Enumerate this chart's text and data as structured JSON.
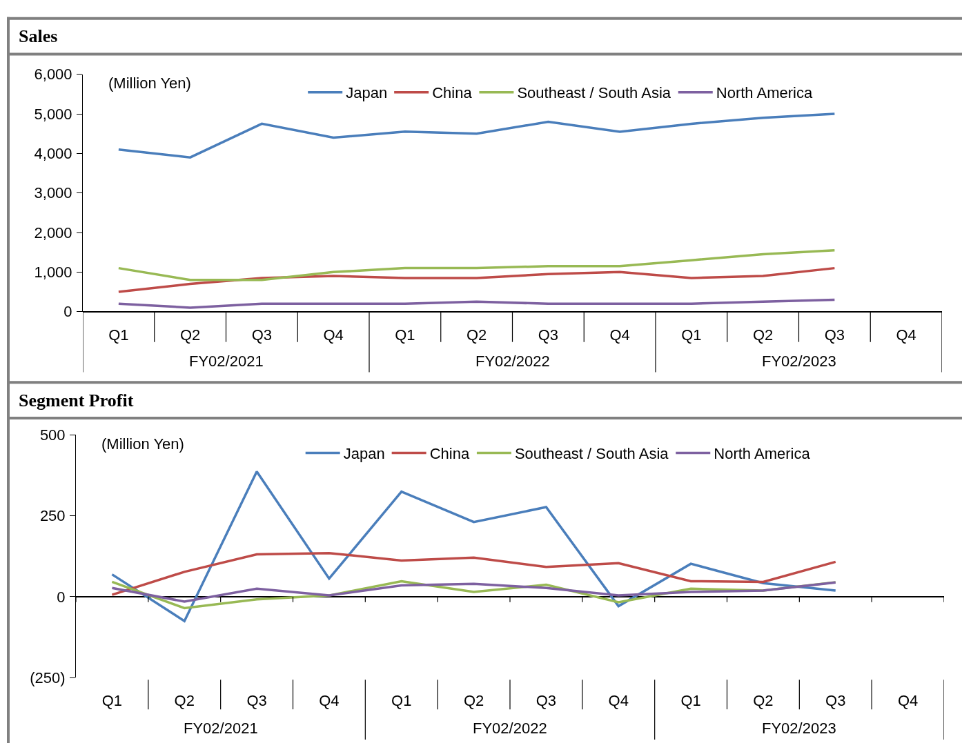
{
  "chart_data": [
    {
      "type": "line",
      "title": "Sales",
      "categories": [
        "Q1",
        "Q2",
        "Q3",
        "Q4",
        "Q1",
        "Q2",
        "Q3",
        "Q4",
        "Q1",
        "Q2",
        "Q3",
        "Q4"
      ],
      "annotations": [
        "(Million Yen)",
        "FY02/2021",
        "FY02/2022",
        "FY02/2023"
      ],
      "series": [
        {
          "name": "Japan",
          "color": "#4a7ebb",
          "values": [
            4100,
            3900,
            4750,
            4400,
            4550,
            4500,
            4800,
            4550,
            4750,
            4900,
            5000,
            null
          ]
        },
        {
          "name": "China",
          "color": "#be4b48",
          "values": [
            500,
            700,
            850,
            900,
            850,
            850,
            950,
            1000,
            850,
            900,
            1100,
            null
          ]
        },
        {
          "name": "Southeast / South Asia",
          "color": "#98b954",
          "values": [
            1100,
            800,
            800,
            1000,
            1100,
            1100,
            1150,
            1150,
            1300,
            1450,
            1550,
            null
          ]
        },
        {
          "name": "North America",
          "color": "#7d60a0",
          "values": [
            200,
            100,
            200,
            200,
            200,
            250,
            200,
            200,
            200,
            250,
            300,
            null
          ]
        }
      ],
      "ylim": [
        0,
        6000
      ],
      "yticks": [
        0,
        {
          "value": 1000,
          "label": "1,000"
        },
        {
          "value": 2000,
          "label": "2,000"
        },
        {
          "value": 3000,
          "label": "3,000"
        },
        {
          "value": 4000,
          "label": "4,000"
        },
        {
          "value": 5000,
          "label": "5,000"
        },
        {
          "value": 6000,
          "label": "6,000"
        }
      ],
      "legend": "top",
      "marker": "none",
      "line_style": "solid"
    },
    {
      "type": "line",
      "title": "Segment Profit",
      "categories": [
        "Q1",
        "Q2",
        "Q3",
        "Q4",
        "Q1",
        "Q2",
        "Q3",
        "Q4",
        "Q1",
        "Q2",
        "Q3",
        "Q4"
      ],
      "annotations": [
        "(Million Yen)",
        "FY02/2021",
        "FY02/2022",
        "FY02/2023"
      ],
      "series": [
        {
          "name": "Japan",
          "color": "#4a7ebb",
          "values": [
            69,
            -75,
            387,
            56,
            325,
            231,
            277,
            -29,
            102,
            42,
            19,
            null
          ]
        },
        {
          "name": "China",
          "color": "#be4b48",
          "values": [
            6,
            77,
            131,
            135,
            112,
            121,
            92,
            104,
            48,
            46,
            108,
            null
          ]
        },
        {
          "name": "Southeast / South Asia",
          "color": "#98b954",
          "values": [
            46,
            -35,
            -8,
            4,
            48,
            15,
            37,
            -17,
            25,
            19,
            45,
            null
          ]
        },
        {
          "name": "North America",
          "color": "#7d60a0",
          "values": [
            27,
            -15,
            25,
            4,
            35,
            40,
            27,
            4,
            15,
            19,
            44,
            null
          ]
        }
      ],
      "ylim": [
        -250,
        500
      ],
      "yticks": [
        {
          "value": -250,
          "label": "(250)"
        },
        0,
        250,
        500
      ],
      "legend": "top",
      "marker": "none",
      "line_style": "solid"
    }
  ]
}
